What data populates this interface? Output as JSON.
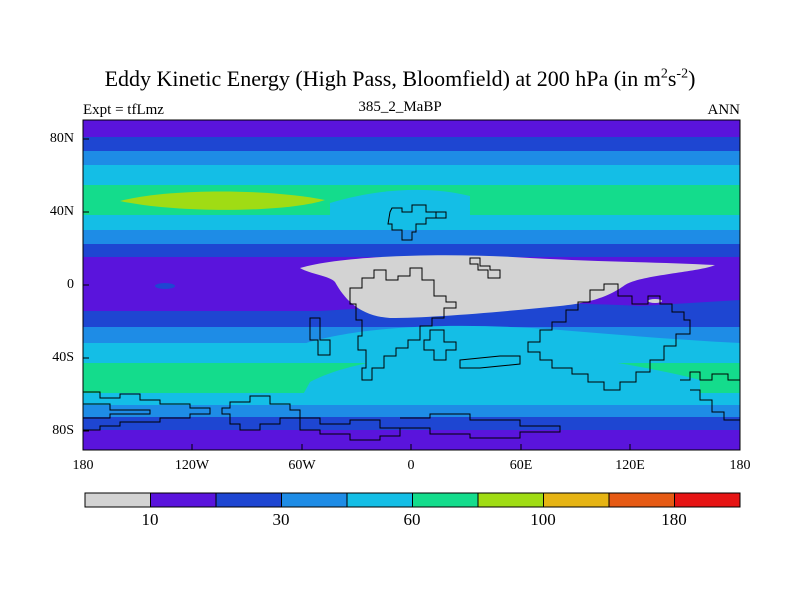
{
  "title": {
    "main": "Eddy Kinetic Energy (High Pass, Bloomfield) at 200 hPa (in m",
    "sup1": "2",
    "mid": "s",
    "sup2": "-2",
    "close": ")"
  },
  "subtitle": {
    "left": "Expt = tfLmz",
    "center": "385_2_MaBP",
    "right": "ANN"
  },
  "map": {
    "y_ticks": [
      "80N",
      "40N",
      "0",
      "40S",
      "80S"
    ],
    "x_ticks": [
      "180",
      "120W",
      "60W",
      "0",
      "60E",
      "120E",
      "180"
    ]
  },
  "colorbar": {
    "colors": [
      "#d3d3d3",
      "#5a14dc",
      "#1e46d2",
      "#1e8ce6",
      "#14bee6",
      "#14dc8c",
      "#a0dc14",
      "#e6b414",
      "#e65a14",
      "#e61414"
    ],
    "labels": [
      "10",
      "30",
      "60",
      "100",
      "180"
    ]
  }
}
